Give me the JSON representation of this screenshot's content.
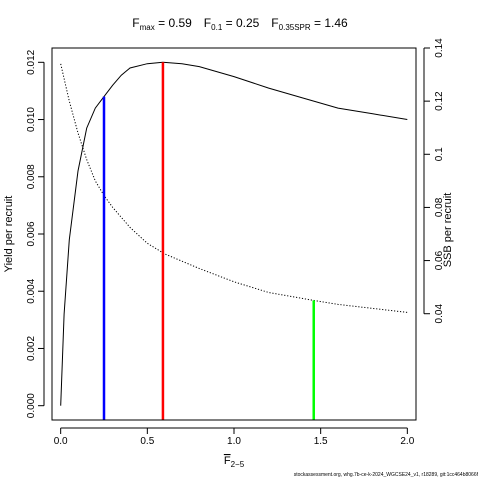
{
  "chart_data": {
    "type": "line",
    "title": {
      "f_max": {
        "base": "F",
        "sub": "max",
        "value": "= 0.59"
      },
      "f_01": {
        "base": "F",
        "sub": "0.1",
        "value": "= 0.25"
      },
      "f_spr": {
        "base": "F",
        "sub": "0.35SPR",
        "value": "= 1.46"
      }
    },
    "xlabel": {
      "base": "F",
      "sub": "2−5",
      "overline": true
    },
    "ylabel_left": "Yield per recruit",
    "ylabel_right": "SSB per recruit",
    "xlim": [
      -0.05,
      2.05
    ],
    "ylim_left": [
      -0.0005,
      0.0125
    ],
    "ylim_right": [
      0.0,
      0.14
    ],
    "x_ticks": [
      0.0,
      0.5,
      1.0,
      1.5,
      2.0
    ],
    "x_tick_labels": [
      "0.0",
      "0.5",
      "1.0",
      "1.5",
      "2.0"
    ],
    "y_left_ticks": [
      0.0,
      0.002,
      0.004,
      0.006,
      0.008,
      0.01,
      0.012
    ],
    "y_left_tick_labels": [
      "0.000",
      "0.002",
      "0.004",
      "0.006",
      "0.008",
      "0.010",
      "0.012"
    ],
    "y_right_ticks": [
      0.04,
      0.06,
      0.08,
      0.1,
      0.12,
      0.14
    ],
    "y_right_tick_labels": [
      "0.04",
      "0.06",
      "0.08",
      "0.1",
      "0.12",
      "0.14"
    ],
    "series": [
      {
        "axis": "left",
        "style": "solid",
        "color": "#000000",
        "x": [
          0.0,
          0.02,
          0.05,
          0.1,
          0.15,
          0.2,
          0.25,
          0.3,
          0.35,
          0.4,
          0.5,
          0.59,
          0.7,
          0.8,
          1.0,
          1.2,
          1.4,
          1.6,
          1.8,
          2.0
        ],
        "y": [
          0.0,
          0.0032,
          0.0058,
          0.0082,
          0.0097,
          0.0104,
          0.0108,
          0.0112,
          0.01155,
          0.0118,
          0.01195,
          0.012,
          0.01195,
          0.01185,
          0.0115,
          0.0111,
          0.01075,
          0.0104,
          0.0102,
          0.01
        ]
      },
      {
        "axis": "right",
        "style": "dotted",
        "color": "#000000",
        "x": [
          0.0,
          0.05,
          0.1,
          0.15,
          0.2,
          0.25,
          0.3,
          0.4,
          0.5,
          0.6,
          0.8,
          1.0,
          1.2,
          1.46,
          1.6,
          1.8,
          2.0
        ],
        "y": [
          0.134,
          0.12,
          0.108,
          0.098,
          0.09,
          0.0845,
          0.08,
          0.0725,
          0.0665,
          0.0625,
          0.057,
          0.052,
          0.048,
          0.045,
          0.0435,
          0.042,
          0.0405
        ]
      }
    ],
    "reference_lines": [
      {
        "x": 0.25,
        "y": 0.0108,
        "axis": "left",
        "color": "#0000ff"
      },
      {
        "x": 0.59,
        "y": 0.012,
        "axis": "left",
        "color": "#ff0000"
      },
      {
        "x": 1.46,
        "y": 0.045,
        "axis": "right",
        "color": "#00ff00"
      }
    ]
  },
  "footer": "stockassessment.org, whg.7b-ce-k-2024_WGCSE24_v1, r18289, git:1cc464b8066f"
}
